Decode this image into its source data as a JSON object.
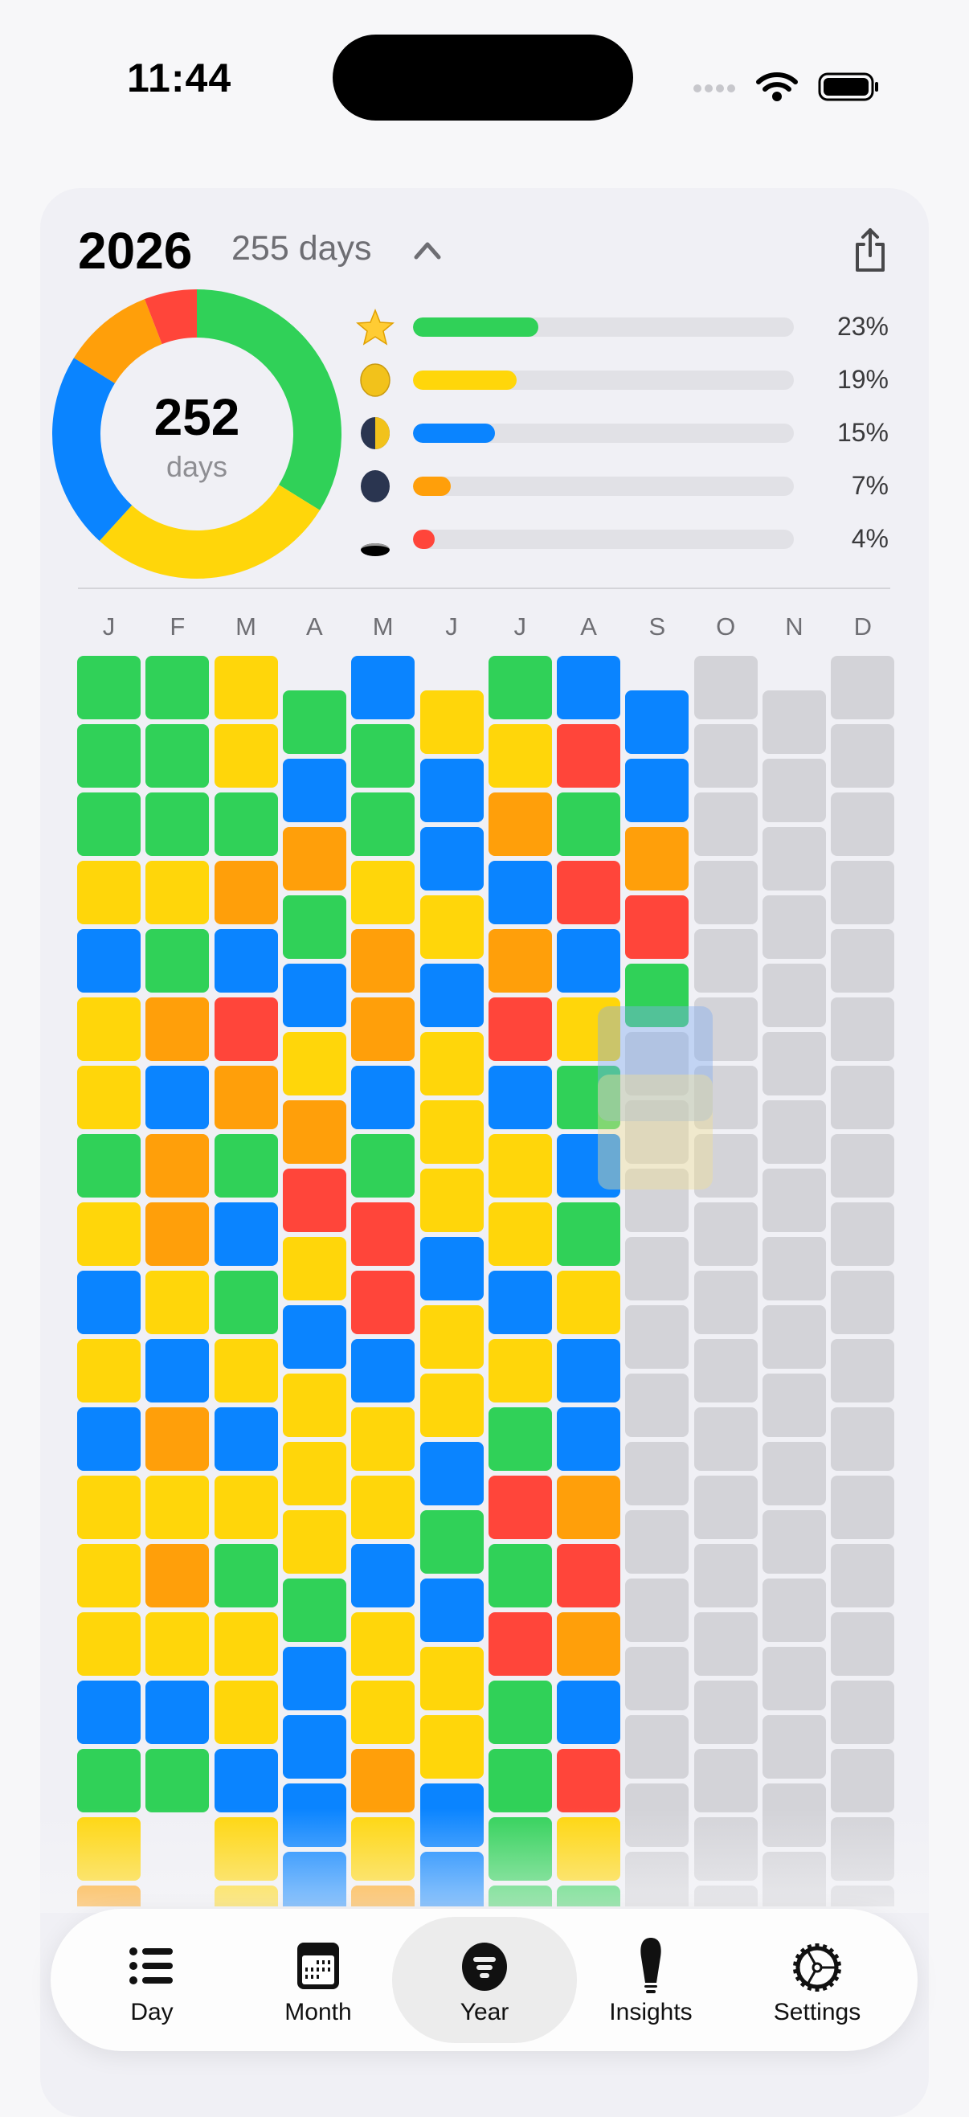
{
  "status_bar": {
    "time": "11:44",
    "icons": [
      "signal-icon",
      "wifi-icon",
      "battery-icon"
    ]
  },
  "header": {
    "year": "2026",
    "days_label": "255 days",
    "collapse_icon": "chevron-up-icon",
    "share_icon": "share-icon"
  },
  "palette": {
    "G": "#30d158",
    "Y": "#ffd60a",
    "B": "#0a84ff",
    "O": "#ff9f0a",
    "R": "#ff453a",
    "-": "#d3d3d8"
  },
  "summary": {
    "total": "252",
    "total_label": "days",
    "moods": [
      {
        "icon": "star-icon",
        "color": "#30d158",
        "percent": 23,
        "label": "23%"
      },
      {
        "icon": "full-moon-icon",
        "color": "#ffd60a",
        "percent": 19,
        "label": "19%"
      },
      {
        "icon": "half-moon-icon",
        "color": "#0a84ff",
        "percent": 15,
        "label": "15%"
      },
      {
        "icon": "new-moon-icon",
        "color": "#ff9f0a",
        "percent": 7,
        "label": "7%"
      },
      {
        "icon": "hole-icon",
        "color": "#ff453a",
        "percent": 4,
        "label": "4%"
      }
    ]
  },
  "months": [
    {
      "label": "J",
      "days": "GGGYBYYGYBYBYYYBGYO"
    },
    {
      "label": "F",
      "days": "GGGYGOBOOYBOYOYBG"
    },
    {
      "label": "M",
      "days": "YYGOBROGBGYBYGYYBYY"
    },
    {
      "label": "A",
      "days": "GBOGBYORYBYYYGBBBB"
    },
    {
      "label": "M",
      "days": "BGGYOOBGRRBYYBYYOYO"
    },
    {
      "label": "J",
      "days": "YBBYBYYYBYYBGBYYBB"
    },
    {
      "label": "J",
      "days": "GYOBORBYYBYGRGRGGGG"
    },
    {
      "label": "A",
      "days": "BRGRBYGBGYBBOROBRYG"
    },
    {
      "label": "S",
      "days": "BBORG-------------"
    },
    {
      "label": "O",
      "days": "-------------------"
    },
    {
      "label": "N",
      "days": "------------------"
    },
    {
      "label": "D",
      "days": "-------------------"
    }
  ],
  "tabs": [
    {
      "label": "Day",
      "icon": "list-icon",
      "selected": false
    },
    {
      "label": "Month",
      "icon": "calendar-icon",
      "selected": false
    },
    {
      "label": "Year",
      "icon": "year-icon",
      "selected": true
    },
    {
      "label": "Insights",
      "icon": "lightbulb-icon",
      "selected": false
    },
    {
      "label": "Settings",
      "icon": "gear-icon",
      "selected": false
    }
  ]
}
